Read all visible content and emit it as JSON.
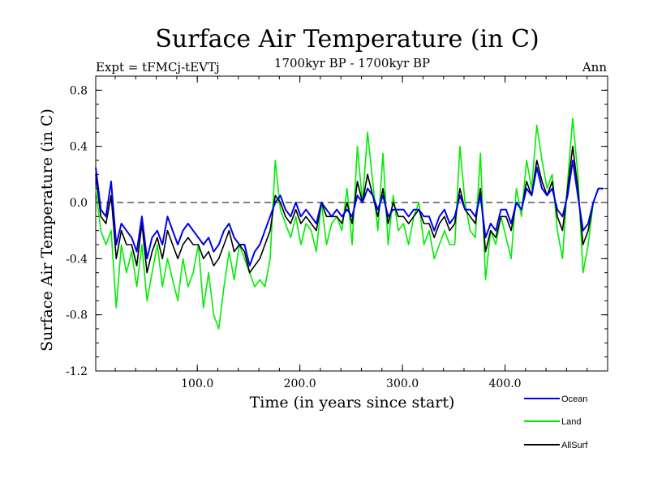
{
  "chart_data": {
    "type": "line",
    "title": "Surface Air Temperature (in C)",
    "subtitle": "1700kyr BP - 1700kyr BP",
    "experiment_label": "Expt = tFMCj-tEVTj",
    "period_label": "Ann",
    "xlabel": "Time (in years since start)",
    "ylabel": "Surface Air Temperature (in C)",
    "xlim": [
      1,
      500
    ],
    "ylim": [
      -1.2,
      0.9
    ],
    "x_ticks": [
      100,
      200,
      300,
      400
    ],
    "x_tick_labels": [
      "100.0",
      "200.0",
      "300.0",
      "400.0"
    ],
    "y_ticks": [
      -1.2,
      -0.8,
      -0.4,
      0.0,
      0.4,
      0.8
    ],
    "y_tick_labels": [
      "-1.2",
      "-0.8",
      "-0.4",
      "0.0",
      "0.4",
      "0.8"
    ],
    "zero_line": 0.0,
    "legend_position": "bottom-right",
    "series": [
      {
        "name": "Land",
        "color": "#00ee00",
        "x_step": 5,
        "x_start": 1,
        "values": [
          0.1,
          -0.2,
          -0.3,
          -0.2,
          -0.75,
          -0.3,
          -0.5,
          -0.35,
          -0.6,
          -0.3,
          -0.7,
          -0.5,
          -0.3,
          -0.6,
          -0.4,
          -0.55,
          -0.7,
          -0.4,
          -0.6,
          -0.5,
          -0.3,
          -0.75,
          -0.5,
          -0.8,
          -0.9,
          -0.6,
          -0.35,
          -0.55,
          -0.3,
          -0.4,
          -0.5,
          -0.6,
          -0.55,
          -0.6,
          -0.4,
          0.3,
          -0.05,
          -0.15,
          -0.25,
          -0.1,
          -0.3,
          -0.15,
          -0.2,
          -0.35,
          0.0,
          -0.3,
          -0.15,
          -0.1,
          -0.2,
          0.1,
          -0.3,
          0.4,
          0.0,
          0.5,
          0.15,
          -0.2,
          0.35,
          -0.3,
          0.05,
          -0.2,
          -0.15,
          -0.3,
          -0.1,
          0.0,
          -0.3,
          -0.2,
          -0.4,
          -0.3,
          -0.2,
          -0.3,
          -0.3,
          0.4,
          0.0,
          -0.2,
          -0.25,
          0.35,
          -0.55,
          -0.2,
          -0.3,
          -0.1,
          -0.25,
          -0.4,
          0.1,
          -0.1,
          0.3,
          0.1,
          0.55,
          0.3,
          0.1,
          0.2,
          -0.2,
          -0.4,
          0.15,
          0.6,
          0.2,
          -0.5,
          -0.3,
          0.0,
          0.1,
          0.1
        ]
      },
      {
        "name": "Ocean",
        "color": "#0000ee",
        "x_step": 5,
        "x_start": 1,
        "values": [
          0.25,
          -0.05,
          -0.1,
          0.15,
          -0.3,
          -0.15,
          -0.2,
          -0.25,
          -0.35,
          -0.1,
          -0.4,
          -0.25,
          -0.2,
          -0.3,
          -0.1,
          -0.2,
          -0.3,
          -0.2,
          -0.15,
          -0.2,
          -0.25,
          -0.3,
          -0.25,
          -0.35,
          -0.3,
          -0.2,
          -0.15,
          -0.25,
          -0.3,
          -0.3,
          -0.45,
          -0.35,
          -0.3,
          -0.2,
          -0.1,
          0.0,
          0.05,
          -0.05,
          -0.1,
          0.0,
          -0.1,
          -0.05,
          -0.1,
          -0.15,
          0.0,
          -0.05,
          -0.1,
          -0.05,
          -0.1,
          -0.05,
          -0.1,
          0.05,
          0.0,
          0.1,
          0.05,
          -0.05,
          0.05,
          -0.1,
          -0.05,
          -0.05,
          -0.05,
          -0.1,
          -0.05,
          -0.05,
          -0.1,
          -0.1,
          -0.2,
          -0.1,
          -0.05,
          -0.15,
          -0.1,
          0.05,
          -0.05,
          -0.05,
          -0.1,
          0.05,
          -0.25,
          -0.15,
          -0.2,
          -0.05,
          -0.05,
          -0.15,
          0.0,
          -0.05,
          0.1,
          0.05,
          0.25,
          0.1,
          0.05,
          0.1,
          -0.05,
          -0.1,
          0.05,
          0.3,
          0.05,
          -0.2,
          -0.15,
          0.0,
          0.1,
          0.1
        ]
      },
      {
        "name": "AllSurf",
        "color": "#000000",
        "x_step": 5,
        "x_start": 1,
        "values": [
          0.2,
          -0.1,
          -0.15,
          0.05,
          -0.4,
          -0.2,
          -0.3,
          -0.3,
          -0.45,
          -0.15,
          -0.5,
          -0.35,
          -0.25,
          -0.4,
          -0.2,
          -0.3,
          -0.4,
          -0.3,
          -0.25,
          -0.3,
          -0.3,
          -0.4,
          -0.35,
          -0.45,
          -0.4,
          -0.3,
          -0.2,
          -0.35,
          -0.3,
          -0.35,
          -0.5,
          -0.45,
          -0.4,
          -0.3,
          -0.2,
          0.05,
          0.0,
          -0.1,
          -0.15,
          -0.05,
          -0.15,
          -0.1,
          -0.15,
          -0.2,
          0.0,
          -0.1,
          -0.1,
          -0.1,
          -0.15,
          0.0,
          -0.15,
          0.15,
          0.0,
          0.2,
          0.05,
          -0.1,
          0.1,
          -0.15,
          0.0,
          -0.1,
          -0.1,
          -0.15,
          -0.1,
          -0.05,
          -0.15,
          -0.15,
          -0.25,
          -0.15,
          -0.1,
          -0.2,
          -0.15,
          0.1,
          -0.05,
          -0.1,
          -0.15,
          0.1,
          -0.35,
          -0.2,
          -0.25,
          -0.1,
          -0.1,
          -0.2,
          0.0,
          -0.05,
          0.15,
          0.05,
          0.3,
          0.15,
          0.05,
          0.15,
          -0.1,
          -0.2,
          0.1,
          0.4,
          0.1,
          -0.3,
          -0.2,
          0.0,
          0.1,
          0.1
        ]
      }
    ]
  }
}
